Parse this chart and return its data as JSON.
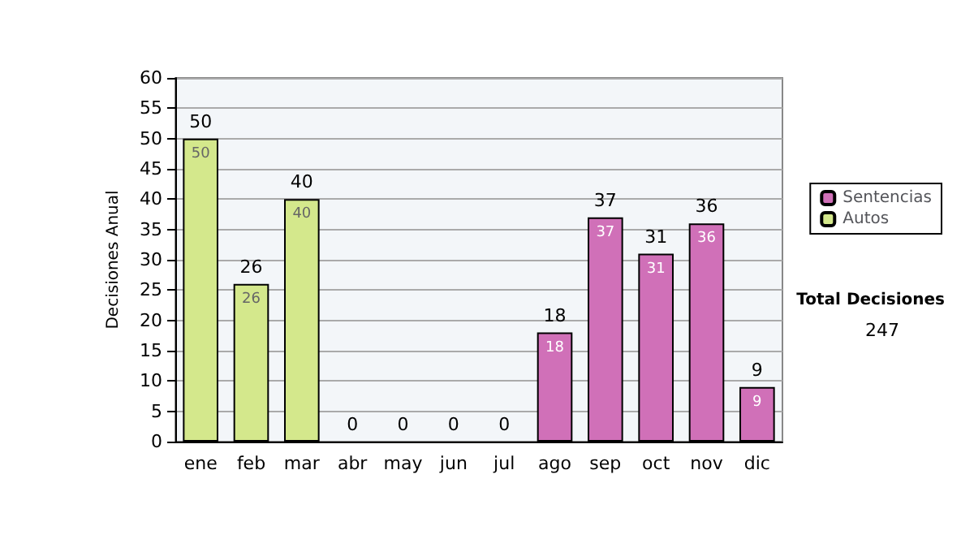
{
  "chart_data": {
    "type": "bar",
    "stacked": true,
    "ylabel": "Decisiones Anual",
    "categories": [
      "ene",
      "feb",
      "mar",
      "abr",
      "may",
      "jun",
      "jul",
      "ago",
      "sep",
      "oct",
      "nov",
      "dic"
    ],
    "series": [
      {
        "name": "Sentencias",
        "color": "#d070b8",
        "values": [
          0,
          0,
          0,
          0,
          0,
          0,
          0,
          18,
          37,
          31,
          36,
          9
        ],
        "value_labels": [
          null,
          null,
          null,
          null,
          null,
          null,
          null,
          "18",
          "37",
          "31",
          "36",
          "9"
        ]
      },
      {
        "name": "Autos",
        "color": "#d4e88c",
        "values": [
          50,
          26,
          40,
          0,
          0,
          0,
          0,
          0,
          0,
          0,
          0,
          0
        ],
        "value_labels": [
          "50",
          "26",
          "40",
          null,
          null,
          null,
          null,
          null,
          null,
          null,
          null,
          null
        ]
      }
    ],
    "totals": [
      "50",
      "26",
      "40",
      "0",
      "0",
      "0",
      "0",
      "18",
      "37",
      "31",
      "36",
      "9"
    ],
    "ylim": [
      0,
      60
    ],
    "yticks": [
      0,
      5,
      10,
      15,
      20,
      25,
      30,
      35,
      40,
      45,
      50,
      55,
      60
    ],
    "grid": "y",
    "legend": "right",
    "annotations": [
      "Total Decisiones",
      "247"
    ]
  }
}
